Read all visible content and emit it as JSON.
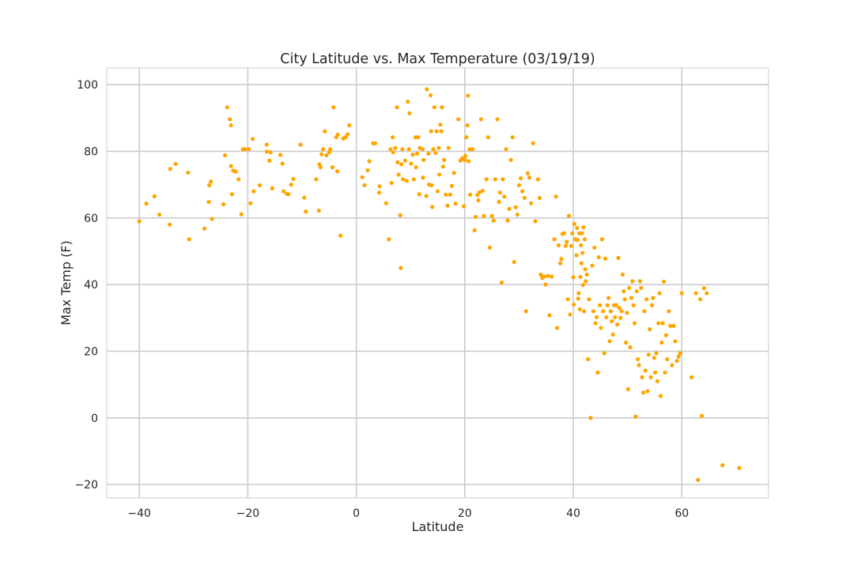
{
  "chart_data": {
    "type": "scatter",
    "title": "City Latitude vs. Max Temperature (03/19/19)",
    "xlabel": "Latitude",
    "ylabel": "Max Temp (F)",
    "xlim": [
      -46,
      76
    ],
    "ylim": [
      -24,
      105
    ],
    "xticks": [
      -40,
      -20,
      0,
      20,
      40,
      60
    ],
    "yticks": [
      -20,
      0,
      20,
      40,
      60,
      80,
      100
    ],
    "grid": true,
    "marker_color": "#FFA500",
    "points": [
      [
        -40,
        59
      ],
      [
        -38.7,
        64.3
      ],
      [
        -37.2,
        66.5
      ],
      [
        -36.3,
        61
      ],
      [
        -34.4,
        58
      ],
      [
        -34.3,
        74.7
      ],
      [
        -33.3,
        76.2
      ],
      [
        -31,
        73.6
      ],
      [
        -30.8,
        53.6
      ],
      [
        -28,
        56.8
      ],
      [
        -27.2,
        64.8
      ],
      [
        -27.1,
        69.8
      ],
      [
        -26.8,
        70.9
      ],
      [
        -26.6,
        59.7
      ],
      [
        -24.5,
        64.1
      ],
      [
        -24.2,
        78.8
      ],
      [
        -23.8,
        93.2
      ],
      [
        -23.3,
        89.6
      ],
      [
        -23.1,
        87.8
      ],
      [
        -23.1,
        75.6
      ],
      [
        -22.9,
        67.1
      ],
      [
        -22.7,
        74.2
      ],
      [
        -22.2,
        73.9
      ],
      [
        -21.7,
        71.6
      ],
      [
        -21.2,
        61.1
      ],
      [
        -20.9,
        80.6
      ],
      [
        -20.5,
        80.6
      ],
      [
        -19.8,
        80.6
      ],
      [
        -19.5,
        64.4
      ],
      [
        -19.1,
        83.7
      ],
      [
        -18.9,
        68
      ],
      [
        -17.8,
        69.8
      ],
      [
        -16.5,
        82
      ],
      [
        -16.5,
        79.9
      ],
      [
        -16,
        77.2
      ],
      [
        -15.8,
        79.7
      ],
      [
        -15.5,
        68.9
      ],
      [
        -14,
        78.9
      ],
      [
        -13.6,
        76.3
      ],
      [
        -13.4,
        68
      ],
      [
        -12.8,
        67.2
      ],
      [
        -12.5,
        67.1
      ],
      [
        -12,
        70
      ],
      [
        -11.6,
        71.7
      ],
      [
        -10.3,
        82
      ],
      [
        -9.6,
        66.1
      ],
      [
        -9.3,
        61.9
      ],
      [
        -7.4,
        71.6
      ],
      [
        -6.9,
        62.2
      ],
      [
        -6.8,
        76.1
      ],
      [
        -6.6,
        75.2
      ],
      [
        -6.4,
        79.1
      ],
      [
        -6.1,
        80.6
      ],
      [
        -5.8,
        86
      ],
      [
        -5.5,
        78.8
      ],
      [
        -5,
        79.7
      ],
      [
        -4.8,
        80.6
      ],
      [
        -4.4,
        75.2
      ],
      [
        -4.2,
        93.2
      ],
      [
        -3.7,
        84.2
      ],
      [
        -3.5,
        74
      ],
      [
        -3.4,
        85
      ],
      [
        -2.9,
        54.7
      ],
      [
        -2.4,
        83.8
      ],
      [
        -2,
        84.2
      ],
      [
        -1.6,
        85.1
      ],
      [
        -1.3,
        87.8
      ],
      [
        1.1,
        72.2
      ],
      [
        1.5,
        69.8
      ],
      [
        2.1,
        74.3
      ],
      [
        2.4,
        77
      ],
      [
        3.1,
        82.4
      ],
      [
        3.5,
        82.4
      ],
      [
        4.2,
        67.6
      ],
      [
        4.3,
        69.5
      ],
      [
        5.5,
        64.4
      ],
      [
        6,
        53.6
      ],
      [
        6.3,
        80.6
      ],
      [
        6.5,
        70.5
      ],
      [
        6.7,
        84.2
      ],
      [
        6.8,
        79.7
      ],
      [
        7.2,
        81
      ],
      [
        7.5,
        93.2
      ],
      [
        7.6,
        76.7
      ],
      [
        7.8,
        73
      ],
      [
        8.1,
        60.8
      ],
      [
        8.2,
        45
      ],
      [
        8.3,
        76.1
      ],
      [
        8.5,
        80.6
      ],
      [
        8.6,
        71.6
      ],
      [
        9,
        77.2
      ],
      [
        9.3,
        71.1
      ],
      [
        9.5,
        94.9
      ],
      [
        9.7,
        80.6
      ],
      [
        9.8,
        91.4
      ],
      [
        10.1,
        76.3
      ],
      [
        10.4,
        79
      ],
      [
        10.6,
        71.6
      ],
      [
        10.9,
        84.2
      ],
      [
        11,
        75.2
      ],
      [
        11.2,
        79.3
      ],
      [
        11.4,
        84.2
      ],
      [
        11.6,
        67.1
      ],
      [
        11.7,
        81
      ],
      [
        12.2,
        80.6
      ],
      [
        12.3,
        72.1
      ],
      [
        12.4,
        77.4
      ],
      [
        12.9,
        66.6
      ],
      [
        13,
        98.6
      ],
      [
        13.3,
        79.3
      ],
      [
        13.4,
        70
      ],
      [
        13.7,
        96.8
      ],
      [
        13.8,
        86
      ],
      [
        13.9,
        69.8
      ],
      [
        14,
        63.3
      ],
      [
        14.2,
        80.6
      ],
      [
        14.4,
        93.2
      ],
      [
        14.6,
        79.5
      ],
      [
        14.8,
        86
      ],
      [
        15,
        68
      ],
      [
        15.2,
        81
      ],
      [
        15.3,
        73
      ],
      [
        15.5,
        88
      ],
      [
        15.7,
        86
      ],
      [
        15.8,
        93.2
      ],
      [
        16,
        75.4
      ],
      [
        16.2,
        77.4
      ],
      [
        16.5,
        67
      ],
      [
        16.8,
        63.7
      ],
      [
        17,
        81
      ],
      [
        17.3,
        67
      ],
      [
        17.6,
        69.6
      ],
      [
        18,
        73.5
      ],
      [
        18.3,
        64.3
      ],
      [
        18.8,
        89.6
      ],
      [
        19.2,
        77.2
      ],
      [
        19.5,
        77.9
      ],
      [
        19.8,
        63.5
      ],
      [
        20,
        77.4
      ],
      [
        20.1,
        78.6
      ],
      [
        20.3,
        84.2
      ],
      [
        20.5,
        87.8
      ],
      [
        20.6,
        96.7
      ],
      [
        20.7,
        77
      ],
      [
        20.9,
        80.6
      ],
      [
        21,
        67
      ],
      [
        21.4,
        80.6
      ],
      [
        21.8,
        56.3
      ],
      [
        22,
        60.3
      ],
      [
        22.3,
        66.9
      ],
      [
        22.5,
        65.3
      ],
      [
        22.7,
        67.7
      ],
      [
        23,
        89.6
      ],
      [
        23.3,
        68.1
      ],
      [
        23.5,
        60.6
      ],
      [
        24,
        71.6
      ],
      [
        24.3,
        84.2
      ],
      [
        24.6,
        51.1
      ],
      [
        25,
        60.6
      ],
      [
        25.3,
        59.2
      ],
      [
        25.6,
        71.6
      ],
      [
        26,
        89.6
      ],
      [
        26.3,
        64.8
      ],
      [
        26.5,
        67.6
      ],
      [
        26.8,
        40.6
      ],
      [
        27,
        71.6
      ],
      [
        27.3,
        66.4
      ],
      [
        27.6,
        80.6
      ],
      [
        27.9,
        59.2
      ],
      [
        28.2,
        62.7
      ],
      [
        28.5,
        77.4
      ],
      [
        28.8,
        84.2
      ],
      [
        29.1,
        46.8
      ],
      [
        29.4,
        63.2
      ],
      [
        29.7,
        61
      ],
      [
        30,
        69.8
      ],
      [
        30.3,
        71.9
      ],
      [
        30.6,
        68
      ],
      [
        31,
        66
      ],
      [
        31.3,
        32
      ],
      [
        31.6,
        73.4
      ],
      [
        31.9,
        72.1
      ],
      [
        32.2,
        64.4
      ],
      [
        32.6,
        82.4
      ],
      [
        33,
        59
      ],
      [
        33.5,
        71.6
      ],
      [
        33.8,
        66
      ],
      [
        34,
        43
      ],
      [
        34.3,
        42
      ],
      [
        34.6,
        42.4
      ],
      [
        34.9,
        40
      ],
      [
        35.3,
        42.6
      ],
      [
        35.6,
        30.8
      ],
      [
        36,
        42.4
      ],
      [
        36.5,
        53.6
      ],
      [
        36.8,
        66.4
      ],
      [
        37,
        27
      ],
      [
        37.3,
        51.8
      ],
      [
        37.6,
        46.4
      ],
      [
        37.8,
        47.7
      ],
      [
        38,
        55.2
      ],
      [
        38.3,
        55.4
      ],
      [
        38.6,
        51.6
      ],
      [
        38.8,
        52.8
      ],
      [
        39,
        35.6
      ],
      [
        39.2,
        60.6
      ],
      [
        39.4,
        31
      ],
      [
        39.6,
        51.6
      ],
      [
        39.8,
        55.4
      ],
      [
        40,
        42.2
      ],
      [
        40.1,
        34
      ],
      [
        40.2,
        58.2
      ],
      [
        40.4,
        53.6
      ],
      [
        40.6,
        48.8
      ],
      [
        40.7,
        57
      ],
      [
        40.8,
        53.4
      ],
      [
        40.9,
        35.8
      ],
      [
        41,
        37.4
      ],
      [
        41.1,
        55.4
      ],
      [
        41.2,
        32.6
      ],
      [
        41.3,
        42.3
      ],
      [
        41.4,
        51.8
      ],
      [
        41.5,
        46.4
      ],
      [
        41.6,
        55.4
      ],
      [
        41.7,
        49.5
      ],
      [
        41.8,
        39.9
      ],
      [
        41.9,
        57.2
      ],
      [
        42,
        32
      ],
      [
        42.1,
        53.6
      ],
      [
        42.2,
        44.6
      ],
      [
        42.3,
        41
      ],
      [
        42.5,
        43
      ],
      [
        42.7,
        17.6
      ],
      [
        42.9,
        35.6
      ],
      [
        43.2,
        0
      ],
      [
        43.5,
        45.7
      ],
      [
        43.7,
        32
      ],
      [
        43.9,
        51.1
      ],
      [
        44.1,
        28.4
      ],
      [
        44.3,
        30.2
      ],
      [
        44.5,
        13.6
      ],
      [
        44.7,
        48.2
      ],
      [
        44.9,
        33.8
      ],
      [
        45.1,
        27
      ],
      [
        45.3,
        53.6
      ],
      [
        45.5,
        32
      ],
      [
        45.7,
        19.4
      ],
      [
        45.9,
        47.8
      ],
      [
        46.1,
        30.2
      ],
      [
        46.3,
        33.8
      ],
      [
        46.5,
        36
      ],
      [
        46.7,
        23
      ],
      [
        46.9,
        32
      ],
      [
        47.1,
        29
      ],
      [
        47.3,
        25
      ],
      [
        47.5,
        33.8
      ],
      [
        47.7,
        30.2
      ],
      [
        47.9,
        33.8
      ],
      [
        48.1,
        28
      ],
      [
        48.3,
        48
      ],
      [
        48.5,
        33
      ],
      [
        48.7,
        30
      ],
      [
        48.9,
        32
      ],
      [
        49.1,
        43
      ],
      [
        49.3,
        38
      ],
      [
        49.5,
        35.6
      ],
      [
        49.7,
        22.6
      ],
      [
        49.9,
        31.5
      ],
      [
        50.1,
        8.6
      ],
      [
        50.3,
        39
      ],
      [
        50.5,
        21.2
      ],
      [
        50.7,
        36
      ],
      [
        50.9,
        41
      ],
      [
        51.1,
        33.8
      ],
      [
        51.3,
        28.4
      ],
      [
        51.5,
        0.4
      ],
      [
        51.7,
        38
      ],
      [
        51.9,
        17.6
      ],
      [
        52.1,
        15.8
      ],
      [
        52.3,
        41
      ],
      [
        52.5,
        39
      ],
      [
        52.7,
        12.2
      ],
      [
        52.9,
        7.6
      ],
      [
        53.1,
        32
      ],
      [
        53.3,
        14.2
      ],
      [
        53.5,
        35.6
      ],
      [
        53.7,
        8
      ],
      [
        53.9,
        19
      ],
      [
        54.1,
        26.6
      ],
      [
        54.3,
        12.2
      ],
      [
        54.5,
        33.8
      ],
      [
        54.7,
        36
      ],
      [
        54.9,
        18
      ],
      [
        55.1,
        13.6
      ],
      [
        55.3,
        19.4
      ],
      [
        55.5,
        11
      ],
      [
        55.7,
        28.4
      ],
      [
        55.9,
        37.4
      ],
      [
        56.1,
        6.6
      ],
      [
        56.3,
        22.6
      ],
      [
        56.5,
        28.4
      ],
      [
        56.7,
        40.9
      ],
      [
        56.9,
        13.6
      ],
      [
        57.1,
        24.8
      ],
      [
        57.3,
        17.6
      ],
      [
        57.6,
        32
      ],
      [
        57.9,
        27.6
      ],
      [
        58.2,
        15.8
      ],
      [
        58.5,
        27.6
      ],
      [
        58.8,
        23
      ],
      [
        59.1,
        17.1
      ],
      [
        59.4,
        18.4
      ],
      [
        59.7,
        19.4
      ],
      [
        60,
        37.4
      ],
      [
        61.8,
        12.2
      ],
      [
        62.6,
        37.4
      ],
      [
        63,
        -18.6
      ],
      [
        63.4,
        35.6
      ],
      [
        63.7,
        0.6
      ],
      [
        64.1,
        38.9
      ],
      [
        64.6,
        37.4
      ],
      [
        67.5,
        -14.2
      ],
      [
        70.6,
        -15
      ]
    ]
  }
}
